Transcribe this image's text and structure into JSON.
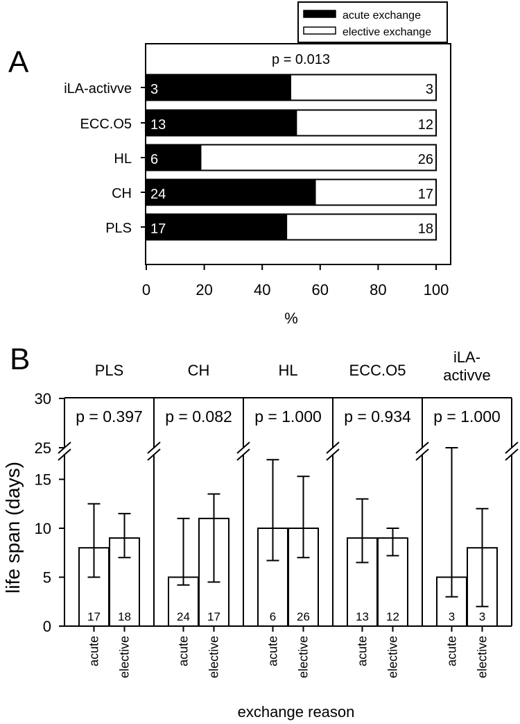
{
  "chart_data": [
    {
      "panel": "A",
      "type": "bar",
      "orientation": "horizontal",
      "stacked": true,
      "title": "p = 0.013",
      "xlabel": "%",
      "xlim": [
        0,
        100
      ],
      "xticks": [
        "0",
        "20",
        "40",
        "60",
        "80",
        "100"
      ],
      "categories": [
        "iLA-activve",
        "ECC.O5",
        "HL",
        "CH",
        "PLS"
      ],
      "legend": {
        "position": "top-right",
        "entries": [
          {
            "name": "acute exchange",
            "color": "#000000"
          },
          {
            "name": "elective exchange",
            "color": "#ffffff"
          }
        ]
      },
      "series": [
        {
          "name": "acute exchange",
          "values": [
            50,
            52,
            19,
            58.5,
            48.6
          ],
          "counts": [
            "3",
            "13",
            "6",
            "24",
            "17"
          ]
        },
        {
          "name": "elective exchange",
          "values": [
            50,
            48,
            81,
            41.5,
            51.4
          ],
          "counts": [
            "3",
            "12",
            "26",
            "17",
            "18"
          ]
        }
      ]
    },
    {
      "panel": "B",
      "type": "bar",
      "ylabel": "life span (days)",
      "xlabel": "exchange reason",
      "ylim": [
        0,
        30
      ],
      "axis_break": [
        17.5,
        25
      ],
      "yticks": [
        "0",
        "5",
        "10",
        "15",
        "25",
        "30"
      ],
      "groups": [
        {
          "name": "PLS",
          "p": "p = 0.397",
          "bars": [
            {
              "label": "acute",
              "value": 8,
              "err_low": 5,
              "err_high": 12.5,
              "n": "17"
            },
            {
              "label": "elective",
              "value": 9,
              "err_low": 7,
              "err_high": 11.5,
              "n": "18"
            }
          ]
        },
        {
          "name": "CH",
          "p": "p = 0.082",
          "bars": [
            {
              "label": "acute",
              "value": 5,
              "err_low": 4.2,
              "err_high": 11,
              "n": "24"
            },
            {
              "label": "elective",
              "value": 11,
              "err_low": 4.5,
              "err_high": 13.5,
              "n": "17"
            }
          ]
        },
        {
          "name": "HL",
          "p": "p = 1.000",
          "bars": [
            {
              "label": "acute",
              "value": 10,
              "err_low": 6.7,
              "err_high": 17,
              "n": "6"
            },
            {
              "label": "elective",
              "value": 10,
              "err_low": 7,
              "err_high": 15.3,
              "n": "26"
            }
          ]
        },
        {
          "name": "ECC.O5",
          "p": "p = 0.934",
          "bars": [
            {
              "label": "acute",
              "value": 9,
              "err_low": 6.5,
              "err_high": 13,
              "n": "13"
            },
            {
              "label": "elective",
              "value": 9,
              "err_low": 7.2,
              "err_high": 10,
              "n": "12"
            }
          ]
        },
        {
          "name": "iLA-\nactivve",
          "p": "p = 1.000",
          "bars": [
            {
              "label": "acute",
              "value": 5,
              "err_low": 3,
              "err_high": 25,
              "n": "3"
            },
            {
              "label": "elective",
              "value": 8,
              "err_low": 2,
              "err_high": 12,
              "n": "3"
            }
          ]
        }
      ]
    }
  ],
  "panel_labels": [
    "A",
    "B"
  ]
}
